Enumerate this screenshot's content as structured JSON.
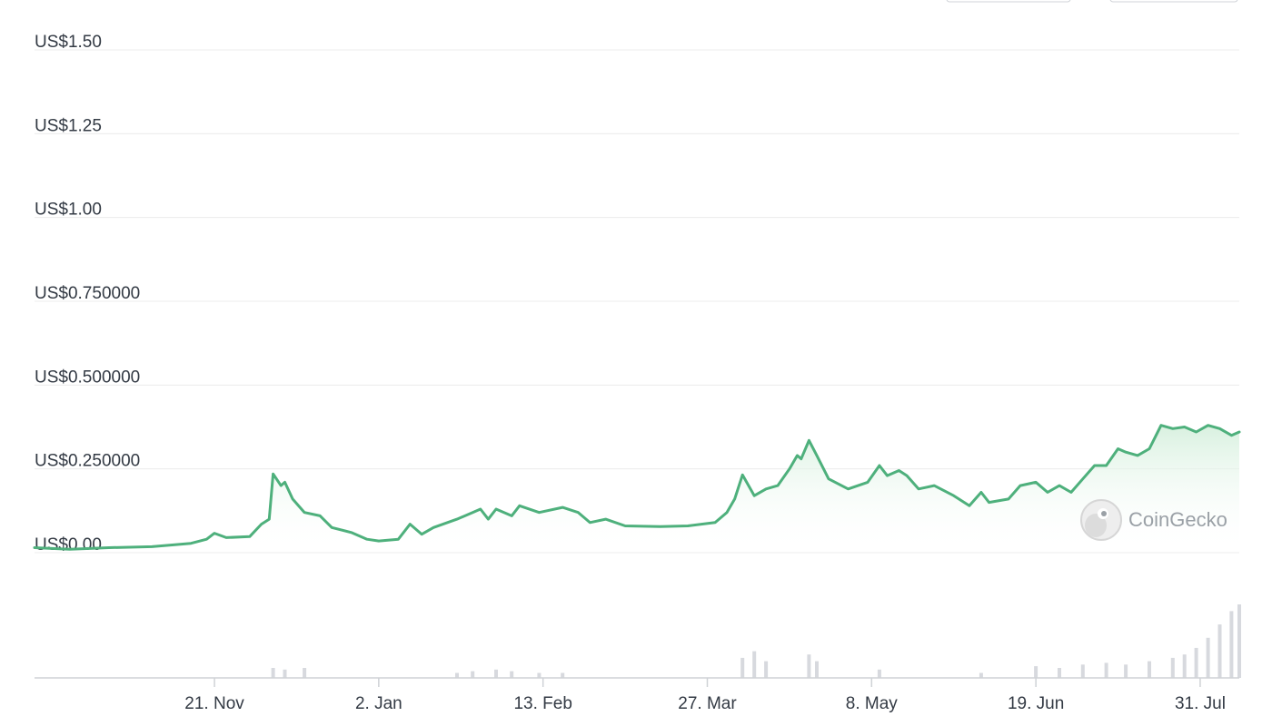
{
  "watermark": {
    "text": "CoinGecko",
    "icon": "coingecko-gecko-icon"
  },
  "colors": {
    "line": "#4eb07c",
    "area_top": "#d4efdc",
    "grid": "#ececec",
    "volume": "#d7d9de",
    "axis": "#cfd2d6"
  },
  "chart_data": {
    "type": "line",
    "y_unit": "USD",
    "ylim": [
      0,
      1.5
    ],
    "yticks": [
      {
        "value": 0,
        "label": "US$0.00"
      },
      {
        "value": 0.25,
        "label": "US$0.250000"
      },
      {
        "value": 0.5,
        "label": "US$0.500000"
      },
      {
        "value": 0.75,
        "label": "US$0.750000"
      },
      {
        "value": 1.0,
        "label": "US$1.00"
      },
      {
        "value": 1.25,
        "label": "US$1.25"
      },
      {
        "value": 1.5,
        "label": "US$1.50"
      }
    ],
    "xlim": [
      "2022-10-06",
      "2023-08-10"
    ],
    "xticks": [
      {
        "date": "2022-11-21",
        "label": "21. Nov"
      },
      {
        "date": "2023-01-02",
        "label": "2. Jan"
      },
      {
        "date": "2023-02-13",
        "label": "13. Feb"
      },
      {
        "date": "2023-03-27",
        "label": "27. Mar"
      },
      {
        "date": "2023-05-08",
        "label": "8. May"
      },
      {
        "date": "2023-06-19",
        "label": "19. Jun"
      },
      {
        "date": "2023-07-31",
        "label": "31. Jul"
      }
    ],
    "grid": true,
    "series": [
      {
        "points": [
          [
            "2022-10-06",
            0.015
          ],
          [
            "2022-10-15",
            0.01
          ],
          [
            "2022-10-25",
            0.015
          ],
          [
            "2022-11-05",
            0.018
          ],
          [
            "2022-11-15",
            0.028
          ],
          [
            "2022-11-19",
            0.04
          ],
          [
            "2022-11-21",
            0.058
          ],
          [
            "2022-11-24",
            0.045
          ],
          [
            "2022-11-30",
            0.048
          ],
          [
            "2022-12-03",
            0.085
          ],
          [
            "2022-12-05",
            0.1
          ],
          [
            "2022-12-06",
            0.235
          ],
          [
            "2022-12-08",
            0.2
          ],
          [
            "2022-12-09",
            0.21
          ],
          [
            "2022-12-11",
            0.16
          ],
          [
            "2022-12-14",
            0.12
          ],
          [
            "2022-12-18",
            0.11
          ],
          [
            "2022-12-21",
            0.075
          ],
          [
            "2022-12-26",
            0.06
          ],
          [
            "2022-12-30",
            0.04
          ],
          [
            "2023-01-02",
            0.035
          ],
          [
            "2023-01-07",
            0.04
          ],
          [
            "2023-01-10",
            0.085
          ],
          [
            "2023-01-13",
            0.055
          ],
          [
            "2023-01-16",
            0.075
          ],
          [
            "2023-01-22",
            0.1
          ],
          [
            "2023-01-26",
            0.12
          ],
          [
            "2023-01-28",
            0.13
          ],
          [
            "2023-01-30",
            0.1
          ],
          [
            "2023-02-01",
            0.13
          ],
          [
            "2023-02-05",
            0.11
          ],
          [
            "2023-02-07",
            0.14
          ],
          [
            "2023-02-12",
            0.12
          ],
          [
            "2023-02-18",
            0.135
          ],
          [
            "2023-02-22",
            0.12
          ],
          [
            "2023-02-25",
            0.09
          ],
          [
            "2023-03-01",
            0.1
          ],
          [
            "2023-03-06",
            0.08
          ],
          [
            "2023-03-15",
            0.078
          ],
          [
            "2023-03-22",
            0.08
          ],
          [
            "2023-03-29",
            0.09
          ],
          [
            "2023-04-01",
            0.12
          ],
          [
            "2023-04-03",
            0.16
          ],
          [
            "2023-04-05",
            0.232
          ],
          [
            "2023-04-08",
            0.17
          ],
          [
            "2023-04-11",
            0.19
          ],
          [
            "2023-04-14",
            0.2
          ],
          [
            "2023-04-17",
            0.25
          ],
          [
            "2023-04-19",
            0.29
          ],
          [
            "2023-04-20",
            0.28
          ],
          [
            "2023-04-22",
            0.335
          ],
          [
            "2023-04-24",
            0.29
          ],
          [
            "2023-04-27",
            0.22
          ],
          [
            "2023-05-02",
            0.19
          ],
          [
            "2023-05-07",
            0.21
          ],
          [
            "2023-05-10",
            0.26
          ],
          [
            "2023-05-12",
            0.23
          ],
          [
            "2023-05-15",
            0.245
          ],
          [
            "2023-05-17",
            0.23
          ],
          [
            "2023-05-20",
            0.19
          ],
          [
            "2023-05-24",
            0.2
          ],
          [
            "2023-05-29",
            0.17
          ],
          [
            "2023-06-02",
            0.14
          ],
          [
            "2023-06-05",
            0.18
          ],
          [
            "2023-06-07",
            0.15
          ],
          [
            "2023-06-12",
            0.16
          ],
          [
            "2023-06-15",
            0.2
          ],
          [
            "2023-06-19",
            0.21
          ],
          [
            "2023-06-22",
            0.18
          ],
          [
            "2023-06-25",
            0.2
          ],
          [
            "2023-06-28",
            0.18
          ],
          [
            "2023-07-01",
            0.22
          ],
          [
            "2023-07-04",
            0.26
          ],
          [
            "2023-07-07",
            0.26
          ],
          [
            "2023-07-10",
            0.31
          ],
          [
            "2023-07-12",
            0.3
          ],
          [
            "2023-07-15",
            0.29
          ],
          [
            "2023-07-18",
            0.31
          ],
          [
            "2023-07-21",
            0.38
          ],
          [
            "2023-07-24",
            0.37
          ],
          [
            "2023-07-27",
            0.375
          ],
          [
            "2023-07-30",
            0.36
          ],
          [
            "2023-08-02",
            0.38
          ],
          [
            "2023-08-05",
            0.37
          ],
          [
            "2023-08-08",
            0.35
          ],
          [
            "2023-08-10",
            0.36
          ]
        ]
      }
    ],
    "volume": [
      [
        "2022-12-06",
        0.06
      ],
      [
        "2022-12-09",
        0.05
      ],
      [
        "2022-12-14",
        0.06
      ],
      [
        "2023-01-22",
        0.03
      ],
      [
        "2023-01-26",
        0.04
      ],
      [
        "2023-02-01",
        0.05
      ],
      [
        "2023-02-05",
        0.04
      ],
      [
        "2023-02-12",
        0.03
      ],
      [
        "2023-02-18",
        0.03
      ],
      [
        "2023-04-05",
        0.12
      ],
      [
        "2023-04-08",
        0.16
      ],
      [
        "2023-04-11",
        0.1
      ],
      [
        "2023-04-22",
        0.14
      ],
      [
        "2023-04-24",
        0.1
      ],
      [
        "2023-05-10",
        0.05
      ],
      [
        "2023-06-05",
        0.03
      ],
      [
        "2023-06-19",
        0.07
      ],
      [
        "2023-06-25",
        0.06
      ],
      [
        "2023-07-01",
        0.08
      ],
      [
        "2023-07-07",
        0.09
      ],
      [
        "2023-07-12",
        0.08
      ],
      [
        "2023-07-18",
        0.1
      ],
      [
        "2023-07-24",
        0.12
      ],
      [
        "2023-07-27",
        0.14
      ],
      [
        "2023-07-30",
        0.18
      ],
      [
        "2023-08-02",
        0.24
      ],
      [
        "2023-08-05",
        0.32
      ],
      [
        "2023-08-08",
        0.4
      ],
      [
        "2023-08-10",
        0.44
      ]
    ]
  }
}
